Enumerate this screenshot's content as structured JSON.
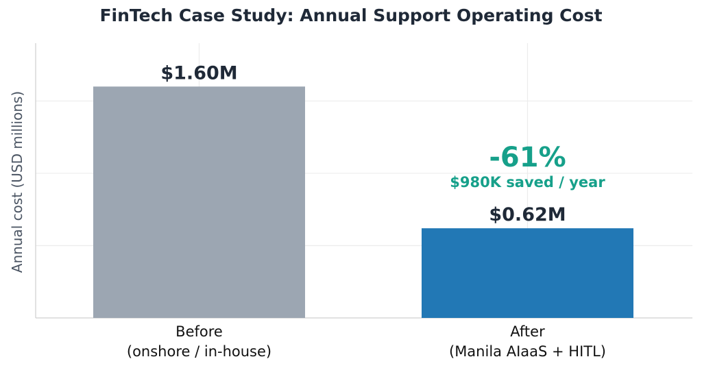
{
  "chart_data": {
    "type": "bar",
    "title": "FinTech Case Study: Annual Support Operating Cost",
    "ylabel": "Annual cost (USD millions)",
    "xlabel": "",
    "categories": [
      {
        "line1": "Before",
        "line2": "(onshore / in-house)"
      },
      {
        "line1": "After",
        "line2": "(Manila AIaaS + HITL)"
      }
    ],
    "values": [
      1.6,
      0.62
    ],
    "value_labels": [
      "$1.60M",
      "$0.62M"
    ],
    "bar_colors": [
      "#9ca6b2",
      "#2278b5"
    ],
    "ylim": [
      0,
      1.9
    ],
    "grid": true,
    "yticks_visible": false,
    "annotation": {
      "headline": "-61%",
      "subline": "$980K saved / year",
      "color": "#16a08a",
      "anchor_category": 1
    }
  }
}
